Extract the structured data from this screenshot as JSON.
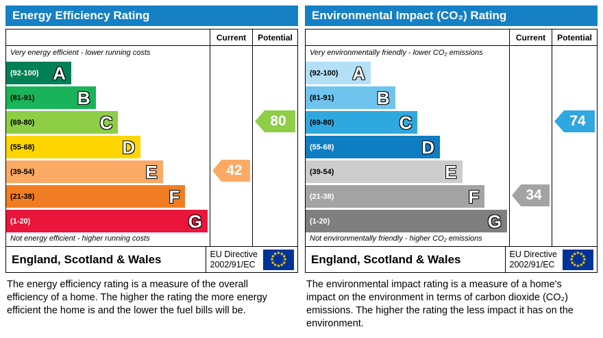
{
  "colors": {
    "header_bar": "#1580c4",
    "flag_blue": "#003399",
    "flag_star": "#ffcc00",
    "arrow_text": "#ffffff"
  },
  "chart_data": {
    "type": "bar",
    "panels": [
      {
        "title": "Energy Efficiency Rating",
        "column_headers": {
          "current": "Current",
          "potential": "Potential"
        },
        "top_note": "Very energy efficient - lower running costs",
        "bottom_note": "Not energy efficient - higher running costs",
        "bands": [
          {
            "letter": "A",
            "range": "(92-100)",
            "min": 92,
            "max": 100,
            "color": "#008054",
            "range_text_color": "#ffffff",
            "width_pct": 32
          },
          {
            "letter": "B",
            "range": "(81-91)",
            "min": 81,
            "max": 91,
            "color": "#19b459",
            "range_text_color": "#000000",
            "width_pct": 44
          },
          {
            "letter": "C",
            "range": "(69-80)",
            "min": 69,
            "max": 80,
            "color": "#8dce46",
            "range_text_color": "#000000",
            "width_pct": 55
          },
          {
            "letter": "D",
            "range": "(55-68)",
            "min": 55,
            "max": 68,
            "color": "#ffd500",
            "range_text_color": "#000000",
            "width_pct": 66
          },
          {
            "letter": "E",
            "range": "(39-54)",
            "min": 39,
            "max": 54,
            "color": "#fbaa65",
            "range_text_color": "#000000",
            "width_pct": 77
          },
          {
            "letter": "F",
            "range": "(21-38)",
            "min": 21,
            "max": 38,
            "color": "#f07d23",
            "range_text_color": "#000000",
            "width_pct": 88
          },
          {
            "letter": "G",
            "range": "(1-20)",
            "min": 1,
            "max": 20,
            "color": "#e9153b",
            "range_text_color": "#ffffff",
            "width_pct": 99
          }
        ],
        "ratings": {
          "current": {
            "value": 42,
            "band": "E",
            "band_index": 4,
            "color": "#fbaa65"
          },
          "potential": {
            "value": 80,
            "band": "C",
            "band_index": 2,
            "color": "#8dce46"
          }
        },
        "footer": {
          "region": "England, Scotland & Wales",
          "directive_line1": "EU Directive",
          "directive_line2": "2002/91/EC"
        },
        "description": "The energy efficiency rating is a measure of the overall efficiency of a home. The higher the rating the more energy efficient the home is and the lower the fuel bills will be."
      },
      {
        "title": "Environmental Impact (CO₂) Rating",
        "column_headers": {
          "current": "Current",
          "potential": "Potential"
        },
        "top_note": "Very environmentally friendly - lower CO₂ emissions",
        "bottom_note": "Not environmentally friendly - higher CO₂ emissions",
        "bands": [
          {
            "letter": "A",
            "range": "(92-100)",
            "min": 92,
            "max": 100,
            "color": "#b3e0f7",
            "range_text_color": "#000000",
            "width_pct": 32
          },
          {
            "letter": "B",
            "range": "(81-91)",
            "min": 81,
            "max": 91,
            "color": "#6fc4ee",
            "range_text_color": "#000000",
            "width_pct": 44
          },
          {
            "letter": "C",
            "range": "(69-80)",
            "min": 69,
            "max": 80,
            "color": "#2fa8e0",
            "range_text_color": "#000000",
            "width_pct": 55
          },
          {
            "letter": "D",
            "range": "(55-68)",
            "min": 55,
            "max": 68,
            "color": "#0f7dc2",
            "range_text_color": "#ffffff",
            "width_pct": 66
          },
          {
            "letter": "E",
            "range": "(39-54)",
            "min": 39,
            "max": 54,
            "color": "#cccccc",
            "range_text_color": "#000000",
            "width_pct": 77
          },
          {
            "letter": "F",
            "range": "(21-38)",
            "min": 21,
            "max": 38,
            "color": "#a3a3a3",
            "range_text_color": "#ffffff",
            "width_pct": 88
          },
          {
            "letter": "G",
            "range": "(1-20)",
            "min": 1,
            "max": 20,
            "color": "#7f7f7f",
            "range_text_color": "#ffffff",
            "width_pct": 99
          }
        ],
        "ratings": {
          "current": {
            "value": 34,
            "band": "F",
            "band_index": 5,
            "color": "#a3a3a3"
          },
          "potential": {
            "value": 74,
            "band": "C",
            "band_index": 2,
            "color": "#2fa8e0"
          }
        },
        "footer": {
          "region": "England, Scotland & Wales",
          "directive_line1": "EU Directive",
          "directive_line2": "2002/91/EC"
        },
        "description": "The environmental impact rating is a measure of a home's impact on the environment in terms of carbon dioxide (CO₂) emissions. The higher the rating the less impact it has on the environment."
      }
    ]
  }
}
